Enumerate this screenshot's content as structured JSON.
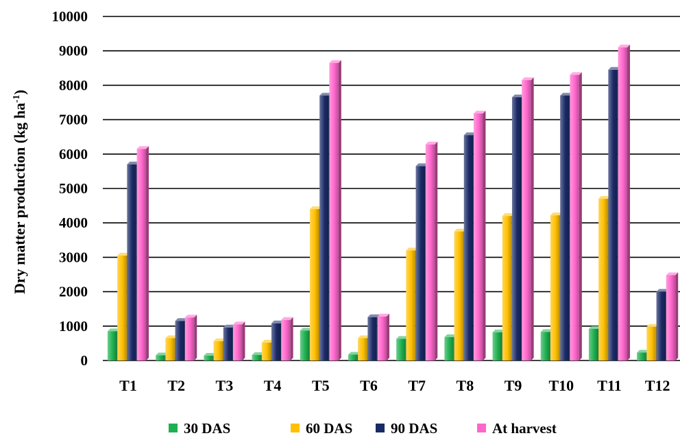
{
  "chart_data": {
    "type": "bar",
    "title": "",
    "xlabel": "",
    "ylabel": "Dry matter production (kg ha",
    "ylabel_sup": "-1",
    "ylabel_close": ")",
    "ylim": [
      0,
      10000
    ],
    "yticks": [
      0,
      1000,
      2000,
      3000,
      4000,
      5000,
      6000,
      7000,
      8000,
      9000,
      10000
    ],
    "grid": true,
    "legend_position": "bottom",
    "categories": [
      "T1",
      "T2",
      "T3",
      "T4",
      "T5",
      "T6",
      "T7",
      "T8",
      "T9",
      "T10",
      "T11",
      "T12"
    ],
    "series": [
      {
        "name": "30 DAS",
        "color": "#1fb04f",
        "values": [
          850,
          150,
          140,
          160,
          870,
          170,
          630,
          680,
          820,
          830,
          920,
          230
        ]
      },
      {
        "name": "60 DAS",
        "color": "#ffc000",
        "values": [
          3050,
          650,
          560,
          520,
          4400,
          650,
          3200,
          3750,
          4200,
          4220,
          4700,
          980
        ]
      },
      {
        "name": "90 DAS",
        "color": "#1a2a66",
        "values": [
          5700,
          1150,
          960,
          1080,
          7700,
          1260,
          5650,
          6550,
          7650,
          7700,
          8450,
          2000
        ]
      },
      {
        "name": "At harvest",
        "color": "#ff66cc",
        "values": [
          6150,
          1250,
          1050,
          1180,
          8650,
          1280,
          6280,
          7180,
          8150,
          8300,
          9100,
          2480
        ]
      }
    ]
  }
}
